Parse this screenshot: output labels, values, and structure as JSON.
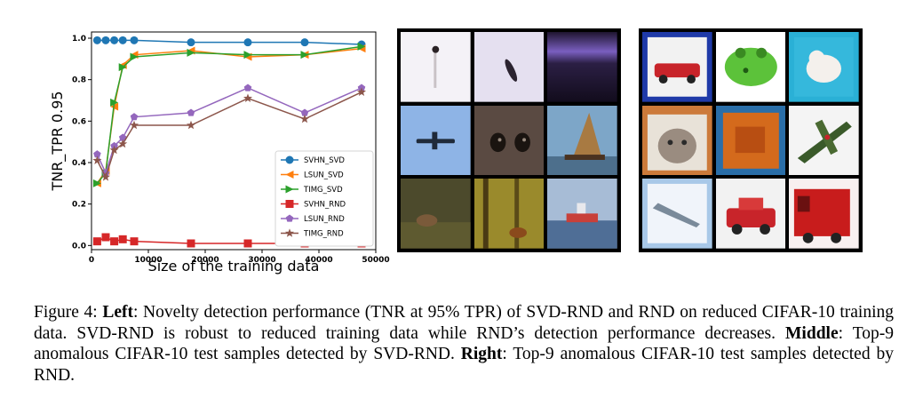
{
  "figure": {
    "caption": {
      "prefix": "Figure 4: ",
      "left_label": "Left",
      "left_text": ": Novelty detection performance (TNR at 95% TPR) of SVD-RND and RND on reduced CIFAR-10 training data. SVD-RND is robust to reduced training data while RND’s detection performance decreases. ",
      "middle_label": "Middle",
      "middle_text": ": Top-9 anomalous CIFAR-10 test samples detected by SVD-RND. ",
      "right_label": "Right",
      "right_text": ": Top-9 anomalous CIFAR-10 test samples detected by RND."
    },
    "middle_grid": {
      "tiles": [
        "bird-on-post",
        "bird-in-sky",
        "purple-dark-sky",
        "airplane-blue-sky",
        "cat-face-closeup",
        "sailboat",
        "deer-in-grass",
        "deer-in-forest",
        "ship-on-water"
      ]
    },
    "right_grid": {
      "tiles": [
        "red-car-blue-frame",
        "green-frog",
        "white-dog-blue-bg",
        "cat-illustration",
        "orange-truck-toy",
        "green-airplane",
        "airplane-sketch",
        "red-car-toy",
        "red-truck"
      ]
    }
  },
  "chart_data": {
    "type": "line",
    "xlabel": "Size of the training data",
    "ylabel": "TNR_TPR 0.95",
    "xlim": [
      0,
      50000
    ],
    "ylim": [
      -0.02,
      1.03
    ],
    "xticks": [
      0,
      10000,
      20000,
      30000,
      40000,
      50000
    ],
    "xtick_labels": [
      "0",
      "10000",
      "20000",
      "30000",
      "40000",
      "50000"
    ],
    "yticks": [
      0.0,
      0.2,
      0.4,
      0.6,
      0.8,
      1.0
    ],
    "ytick_labels": [
      "0.0",
      "0.2",
      "0.4",
      "0.6",
      "0.8",
      "1.0"
    ],
    "legend_position": "lower-right",
    "x": [
      1000,
      2500,
      4000,
      5500,
      7500,
      17500,
      27500,
      37500,
      47500
    ],
    "series": [
      {
        "name": "SVHN_SVD",
        "marker": "circle",
        "color": "#1f77b4",
        "values": [
          0.99,
          0.99,
          0.99,
          0.99,
          0.99,
          0.98,
          0.98,
          0.98,
          0.97
        ]
      },
      {
        "name": "LSUN_SVD",
        "marker": "triangle-left",
        "color": "#ff7f0e",
        "values": [
          0.3,
          0.36,
          0.67,
          0.87,
          0.92,
          0.94,
          0.91,
          0.92,
          0.95
        ]
      },
      {
        "name": "TIMG_SVD",
        "marker": "triangle-right",
        "color": "#2ca02c",
        "values": [
          0.3,
          0.35,
          0.69,
          0.86,
          0.91,
          0.93,
          0.92,
          0.92,
          0.96
        ]
      },
      {
        "name": "SVHN_RND",
        "marker": "square",
        "color": "#d62728",
        "values": [
          0.02,
          0.04,
          0.02,
          0.03,
          0.02,
          0.01,
          0.01,
          0.01,
          0.01
        ]
      },
      {
        "name": "LSUN_RND",
        "marker": "pentagon",
        "color": "#9467bd",
        "values": [
          0.44,
          0.35,
          0.48,
          0.52,
          0.62,
          0.64,
          0.76,
          0.64,
          0.76
        ]
      },
      {
        "name": "TIMG_RND",
        "marker": "star",
        "color": "#8c564b",
        "values": [
          0.41,
          0.33,
          0.46,
          0.49,
          0.58,
          0.58,
          0.71,
          0.61,
          0.74
        ]
      }
    ]
  }
}
